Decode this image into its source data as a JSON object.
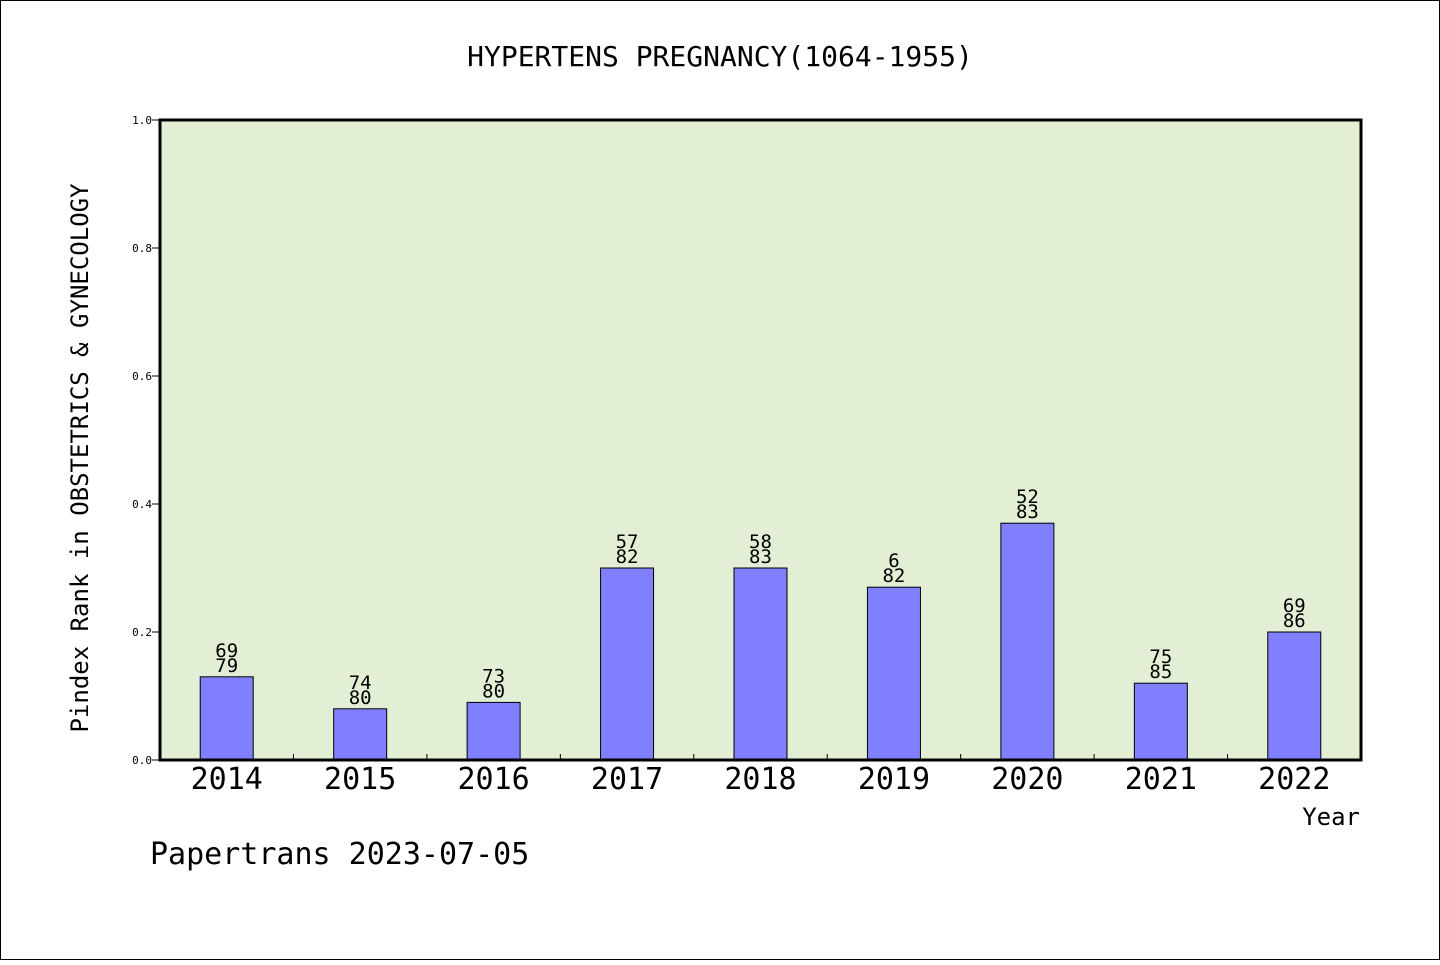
{
  "chart_data": {
    "type": "bar",
    "title": "HYPERTENS PREGNANCY(1064-1955)",
    "xlabel": "Year",
    "ylabel": "Pindex Rank in OBSTETRICS & GYNECOLOGY",
    "categories": [
      "2014",
      "2015",
      "2016",
      "2017",
      "2018",
      "2019",
      "2020",
      "2021",
      "2022"
    ],
    "values": [
      0.13,
      0.08,
      0.09,
      0.3,
      0.3,
      0.27,
      0.37,
      0.12,
      0.2
    ],
    "labels_top": [
      "69",
      "74",
      "73",
      "57",
      "58",
      "6",
      "52",
      "75",
      "69"
    ],
    "labels_bottom": [
      "79",
      "80",
      "80",
      "82",
      "83",
      "82",
      "83",
      "85",
      "86"
    ],
    "ylim": [
      0,
      1.0
    ],
    "yticks": [
      "0.0",
      "0.2",
      "0.4",
      "0.6",
      "0.8",
      "1.0"
    ],
    "grid": false,
    "colors": {
      "background": "#e2efd5",
      "bar": "#8080ff",
      "bar_edge": "#000000"
    }
  },
  "footer": {
    "text": "Papertrans 2023-07-05"
  }
}
